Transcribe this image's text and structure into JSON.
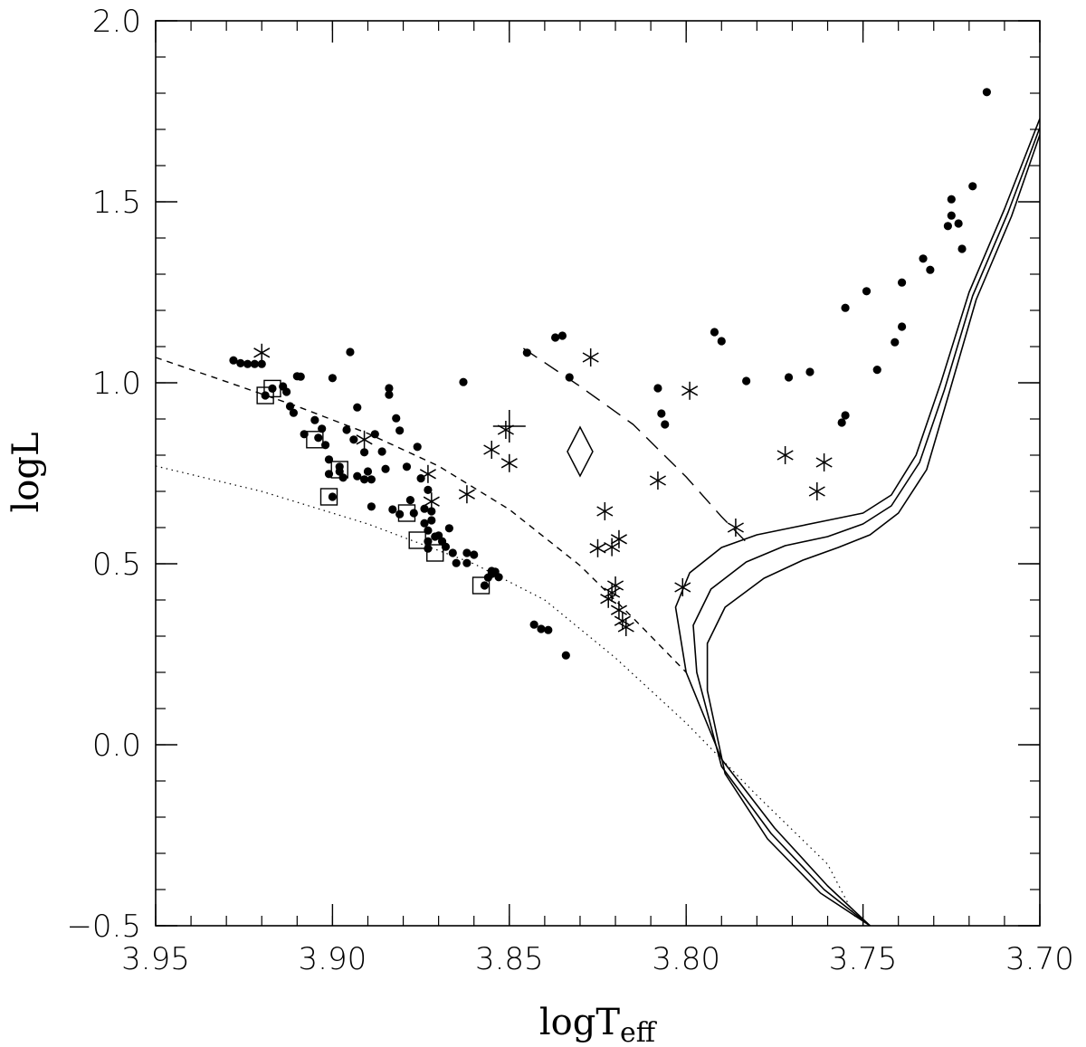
{
  "chart_data": {
    "type": "scatter",
    "title": "",
    "xlabel": {
      "main": "logT",
      "sub": "eff"
    },
    "ylabel": "logL",
    "xlim": [
      3.95,
      3.7
    ],
    "ylim": [
      -0.5,
      2.0
    ],
    "x_reversed": true,
    "grid": false,
    "x_ticks": [
      3.95,
      3.9,
      3.85,
      3.8,
      3.75,
      3.7
    ],
    "x_tick_labels": [
      "3.95",
      "3.90",
      "3.85",
      "3.80",
      "3.75",
      "3.70"
    ],
    "y_ticks": [
      -0.5,
      0.0,
      0.5,
      1.0,
      1.5,
      2.0
    ],
    "y_tick_labels": [
      "−0.5",
      "0.0",
      "0.5",
      "1.0",
      "1.5",
      "2.0"
    ],
    "x_minor_step": 0.01,
    "y_minor_step": 0.1,
    "series": [
      {
        "marker": "filled-circle",
        "points": [
          [
            3.928,
            1.062
          ],
          [
            3.926,
            1.054
          ],
          [
            3.924,
            1.052
          ],
          [
            3.922,
            1.052
          ],
          [
            3.92,
            1.052
          ],
          [
            3.919,
            0.965
          ],
          [
            3.917,
            0.984
          ],
          [
            3.914,
            0.99
          ],
          [
            3.913,
            0.975
          ],
          [
            3.912,
            0.935
          ],
          [
            3.911,
            0.917
          ],
          [
            3.91,
            1.018
          ],
          [
            3.909,
            1.017
          ],
          [
            3.908,
            0.858
          ],
          [
            3.905,
            0.897
          ],
          [
            3.904,
            0.848
          ],
          [
            3.903,
            0.873
          ],
          [
            3.902,
            0.828
          ],
          [
            3.901,
            0.788
          ],
          [
            3.9,
            1.013
          ],
          [
            3.901,
            0.748
          ],
          [
            3.9,
            0.685
          ],
          [
            3.898,
            0.768
          ],
          [
            3.898,
            0.755
          ],
          [
            3.897,
            0.738
          ],
          [
            3.896,
            0.87
          ],
          [
            3.895,
            1.085
          ],
          [
            3.894,
            0.843
          ],
          [
            3.893,
            0.742
          ],
          [
            3.893,
            0.932
          ],
          [
            3.891,
            0.733
          ],
          [
            3.891,
            0.808
          ],
          [
            3.89,
            0.755
          ],
          [
            3.889,
            0.733
          ],
          [
            3.889,
            0.658
          ],
          [
            3.888,
            0.858
          ],
          [
            3.886,
            0.81
          ],
          [
            3.885,
            0.762
          ],
          [
            3.884,
            0.985
          ],
          [
            3.884,
            0.967
          ],
          [
            3.883,
            0.65
          ],
          [
            3.882,
            0.902
          ],
          [
            3.881,
            0.868
          ],
          [
            3.881,
            0.637
          ],
          [
            3.879,
            0.768
          ],
          [
            3.878,
            0.676
          ],
          [
            3.877,
            0.64
          ],
          [
            3.876,
            0.823
          ],
          [
            3.875,
            0.736
          ],
          [
            3.874,
            0.652
          ],
          [
            3.874,
            0.612
          ],
          [
            3.873,
            0.592
          ],
          [
            3.873,
            0.562
          ],
          [
            3.873,
            0.542
          ],
          [
            3.873,
            0.704
          ],
          [
            3.872,
            0.645
          ],
          [
            3.872,
            0.62
          ],
          [
            3.871,
            0.575
          ],
          [
            3.87,
            0.578
          ],
          [
            3.869,
            0.562
          ],
          [
            3.868,
            0.547
          ],
          [
            3.867,
            0.598
          ],
          [
            3.866,
            0.53
          ],
          [
            3.865,
            0.502
          ],
          [
            3.863,
            1.002
          ],
          [
            3.862,
            0.53
          ],
          [
            3.862,
            0.502
          ],
          [
            3.86,
            0.525
          ],
          [
            3.857,
            0.44
          ],
          [
            3.856,
            0.462
          ],
          [
            3.855,
            0.472
          ],
          [
            3.855,
            0.48
          ],
          [
            3.854,
            0.478
          ],
          [
            3.853,
            0.463
          ],
          [
            3.845,
            1.083
          ],
          [
            3.843,
            0.332
          ],
          [
            3.841,
            0.32
          ],
          [
            3.839,
            0.317
          ],
          [
            3.837,
            1.125
          ],
          [
            3.835,
            1.13
          ],
          [
            3.834,
            0.247
          ],
          [
            3.833,
            1.015
          ],
          [
            3.808,
            0.985
          ],
          [
            3.807,
            0.915
          ],
          [
            3.806,
            0.885
          ],
          [
            3.792,
            1.14
          ],
          [
            3.79,
            1.115
          ],
          [
            3.783,
            1.005
          ],
          [
            3.771,
            1.015
          ],
          [
            3.765,
            1.03
          ],
          [
            3.756,
            0.89
          ],
          [
            3.755,
            0.91
          ],
          [
            3.755,
            1.207
          ],
          [
            3.749,
            1.253
          ],
          [
            3.746,
            1.036
          ],
          [
            3.741,
            1.112
          ],
          [
            3.739,
            1.155
          ],
          [
            3.739,
            1.277
          ],
          [
            3.733,
            1.343
          ],
          [
            3.731,
            1.312
          ],
          [
            3.726,
            1.433
          ],
          [
            3.725,
            1.507
          ],
          [
            3.725,
            1.462
          ],
          [
            3.723,
            1.44
          ],
          [
            3.722,
            1.37
          ],
          [
            3.719,
            1.543
          ],
          [
            3.715,
            1.803
          ]
        ]
      },
      {
        "marker": "open-square",
        "points": [
          [
            3.919,
            0.965
          ],
          [
            3.917,
            0.984
          ],
          [
            3.905,
            0.843
          ],
          [
            3.901,
            0.685
          ],
          [
            3.898,
            0.76
          ],
          [
            3.879,
            0.64
          ],
          [
            3.876,
            0.565
          ],
          [
            3.871,
            0.53
          ],
          [
            3.858,
            0.44
          ]
        ]
      },
      {
        "marker": "asterisk",
        "points": [
          [
            3.92,
            1.083
          ],
          [
            3.891,
            0.843
          ],
          [
            3.873,
            0.748
          ],
          [
            3.872,
            0.672
          ],
          [
            3.862,
            0.692
          ],
          [
            3.855,
            0.815
          ],
          [
            3.851,
            0.87
          ],
          [
            3.85,
            0.778
          ],
          [
            3.827,
            1.07
          ],
          [
            3.825,
            0.543
          ],
          [
            3.823,
            0.645
          ],
          [
            3.822,
            0.403
          ],
          [
            3.821,
            0.42
          ],
          [
            3.821,
            0.546
          ],
          [
            3.82,
            0.44
          ],
          [
            3.819,
            0.568
          ],
          [
            3.819,
            0.372
          ],
          [
            3.818,
            0.342
          ],
          [
            3.817,
            0.325
          ],
          [
            3.808,
            0.73
          ],
          [
            3.801,
            0.435
          ],
          [
            3.799,
            0.978
          ],
          [
            3.786,
            0.6
          ],
          [
            3.772,
            0.8
          ],
          [
            3.763,
            0.7
          ],
          [
            3.761,
            0.78
          ]
        ]
      },
      {
        "marker": "plus",
        "points": [
          [
            3.85,
            0.88
          ]
        ]
      },
      {
        "marker": "open-diamond",
        "points": [
          [
            3.83,
            0.81
          ]
        ]
      },
      {
        "line": "short-dashed",
        "points": [
          [
            3.95,
            1.07
          ],
          [
            3.93,
            1.003
          ],
          [
            3.91,
            0.935
          ],
          [
            3.89,
            0.86
          ],
          [
            3.87,
            0.77
          ],
          [
            3.85,
            0.65
          ],
          [
            3.83,
            0.495
          ],
          [
            3.815,
            0.35
          ],
          [
            3.8,
            0.2
          ]
        ]
      },
      {
        "line": "long-dashed",
        "points": [
          [
            3.846,
            1.095
          ],
          [
            3.83,
            0.99
          ],
          [
            3.815,
            0.885
          ],
          [
            3.8,
            0.74
          ],
          [
            3.79,
            0.63
          ],
          [
            3.783,
            0.56
          ]
        ]
      },
      {
        "line": "dotted",
        "points": [
          [
            3.95,
            0.77
          ],
          [
            3.92,
            0.7
          ],
          [
            3.89,
            0.61
          ],
          [
            3.86,
            0.5
          ],
          [
            3.84,
            0.4
          ],
          [
            3.82,
            0.24
          ],
          [
            3.8,
            0.06
          ],
          [
            3.78,
            -0.14
          ],
          [
            3.76,
            -0.33
          ],
          [
            3.752,
            -0.48
          ]
        ]
      },
      {
        "line": "solid",
        "points": [
          [
            3.748,
            -0.5
          ],
          [
            3.76,
            -0.39
          ],
          [
            3.775,
            -0.23
          ],
          [
            3.79,
            -0.04
          ],
          [
            3.8,
            0.2
          ],
          [
            3.803,
            0.38
          ],
          [
            3.799,
            0.475
          ],
          [
            3.79,
            0.545
          ],
          [
            3.78,
            0.58
          ],
          [
            3.77,
            0.6
          ],
          [
            3.76,
            0.62
          ],
          [
            3.75,
            0.64
          ],
          [
            3.742,
            0.69
          ],
          [
            3.735,
            0.8
          ],
          [
            3.728,
            1.0
          ],
          [
            3.72,
            1.25
          ],
          [
            3.71,
            1.48
          ],
          [
            3.7,
            1.73
          ]
        ]
      },
      {
        "line": "solid",
        "points": [
          [
            3.748,
            -0.5
          ],
          [
            3.761,
            -0.4
          ],
          [
            3.776,
            -0.245
          ],
          [
            3.79,
            -0.06
          ],
          [
            3.797,
            0.2
          ],
          [
            3.798,
            0.33
          ],
          [
            3.793,
            0.43
          ],
          [
            3.783,
            0.505
          ],
          [
            3.772,
            0.55
          ],
          [
            3.76,
            0.575
          ],
          [
            3.75,
            0.61
          ],
          [
            3.742,
            0.66
          ],
          [
            3.734,
            0.78
          ],
          [
            3.727,
            0.98
          ],
          [
            3.719,
            1.24
          ],
          [
            3.709,
            1.47
          ],
          [
            3.7,
            1.705
          ]
        ]
      },
      {
        "line": "solid",
        "points": [
          [
            3.748,
            -0.5
          ],
          [
            3.762,
            -0.41
          ],
          [
            3.777,
            -0.26
          ],
          [
            3.789,
            -0.08
          ],
          [
            3.794,
            0.15
          ],
          [
            3.794,
            0.28
          ],
          [
            3.789,
            0.38
          ],
          [
            3.778,
            0.46
          ],
          [
            3.767,
            0.51
          ],
          [
            3.757,
            0.545
          ],
          [
            3.748,
            0.58
          ],
          [
            3.74,
            0.64
          ],
          [
            3.732,
            0.76
          ],
          [
            3.726,
            0.96
          ],
          [
            3.718,
            1.23
          ],
          [
            3.708,
            1.46
          ],
          [
            3.7,
            1.685
          ]
        ]
      }
    ]
  }
}
